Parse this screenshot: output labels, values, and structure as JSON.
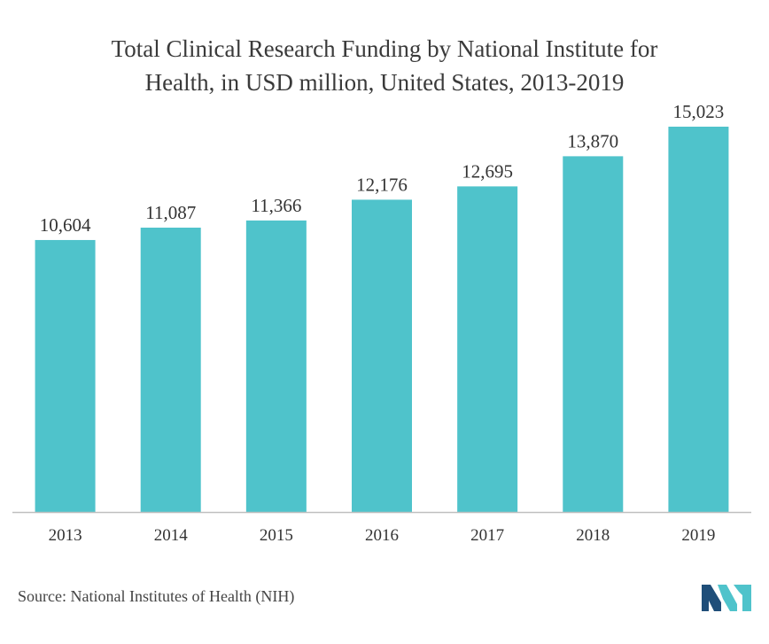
{
  "chart_data": {
    "type": "bar",
    "title_lines": [
      "Total Clinical Research Funding by National Institute for",
      "Health, in USD million, United States, 2013-2019"
    ],
    "categories": [
      "2013",
      "2014",
      "2015",
      "2016",
      "2017",
      "2018",
      "2019"
    ],
    "values": [
      10604,
      11087,
      11366,
      12176,
      12695,
      13870,
      15023
    ],
    "value_labels": [
      "10,604",
      "11,087",
      "11,366",
      "12,176",
      "12,695",
      "13,870",
      "15,023"
    ],
    "xlabel": "",
    "ylabel": "",
    "ylim": [
      0,
      15023
    ],
    "grid": false,
    "legend": "none",
    "bar_color": "#4fc3cb",
    "axis_color": "#bfbfbf"
  },
  "source": "Source: National Institutes of Health (NIH)",
  "logo": {
    "icon": "mordor-intelligence-logo-icon",
    "color_dark": "#1f4e79",
    "color_light": "#4fc3cb"
  }
}
